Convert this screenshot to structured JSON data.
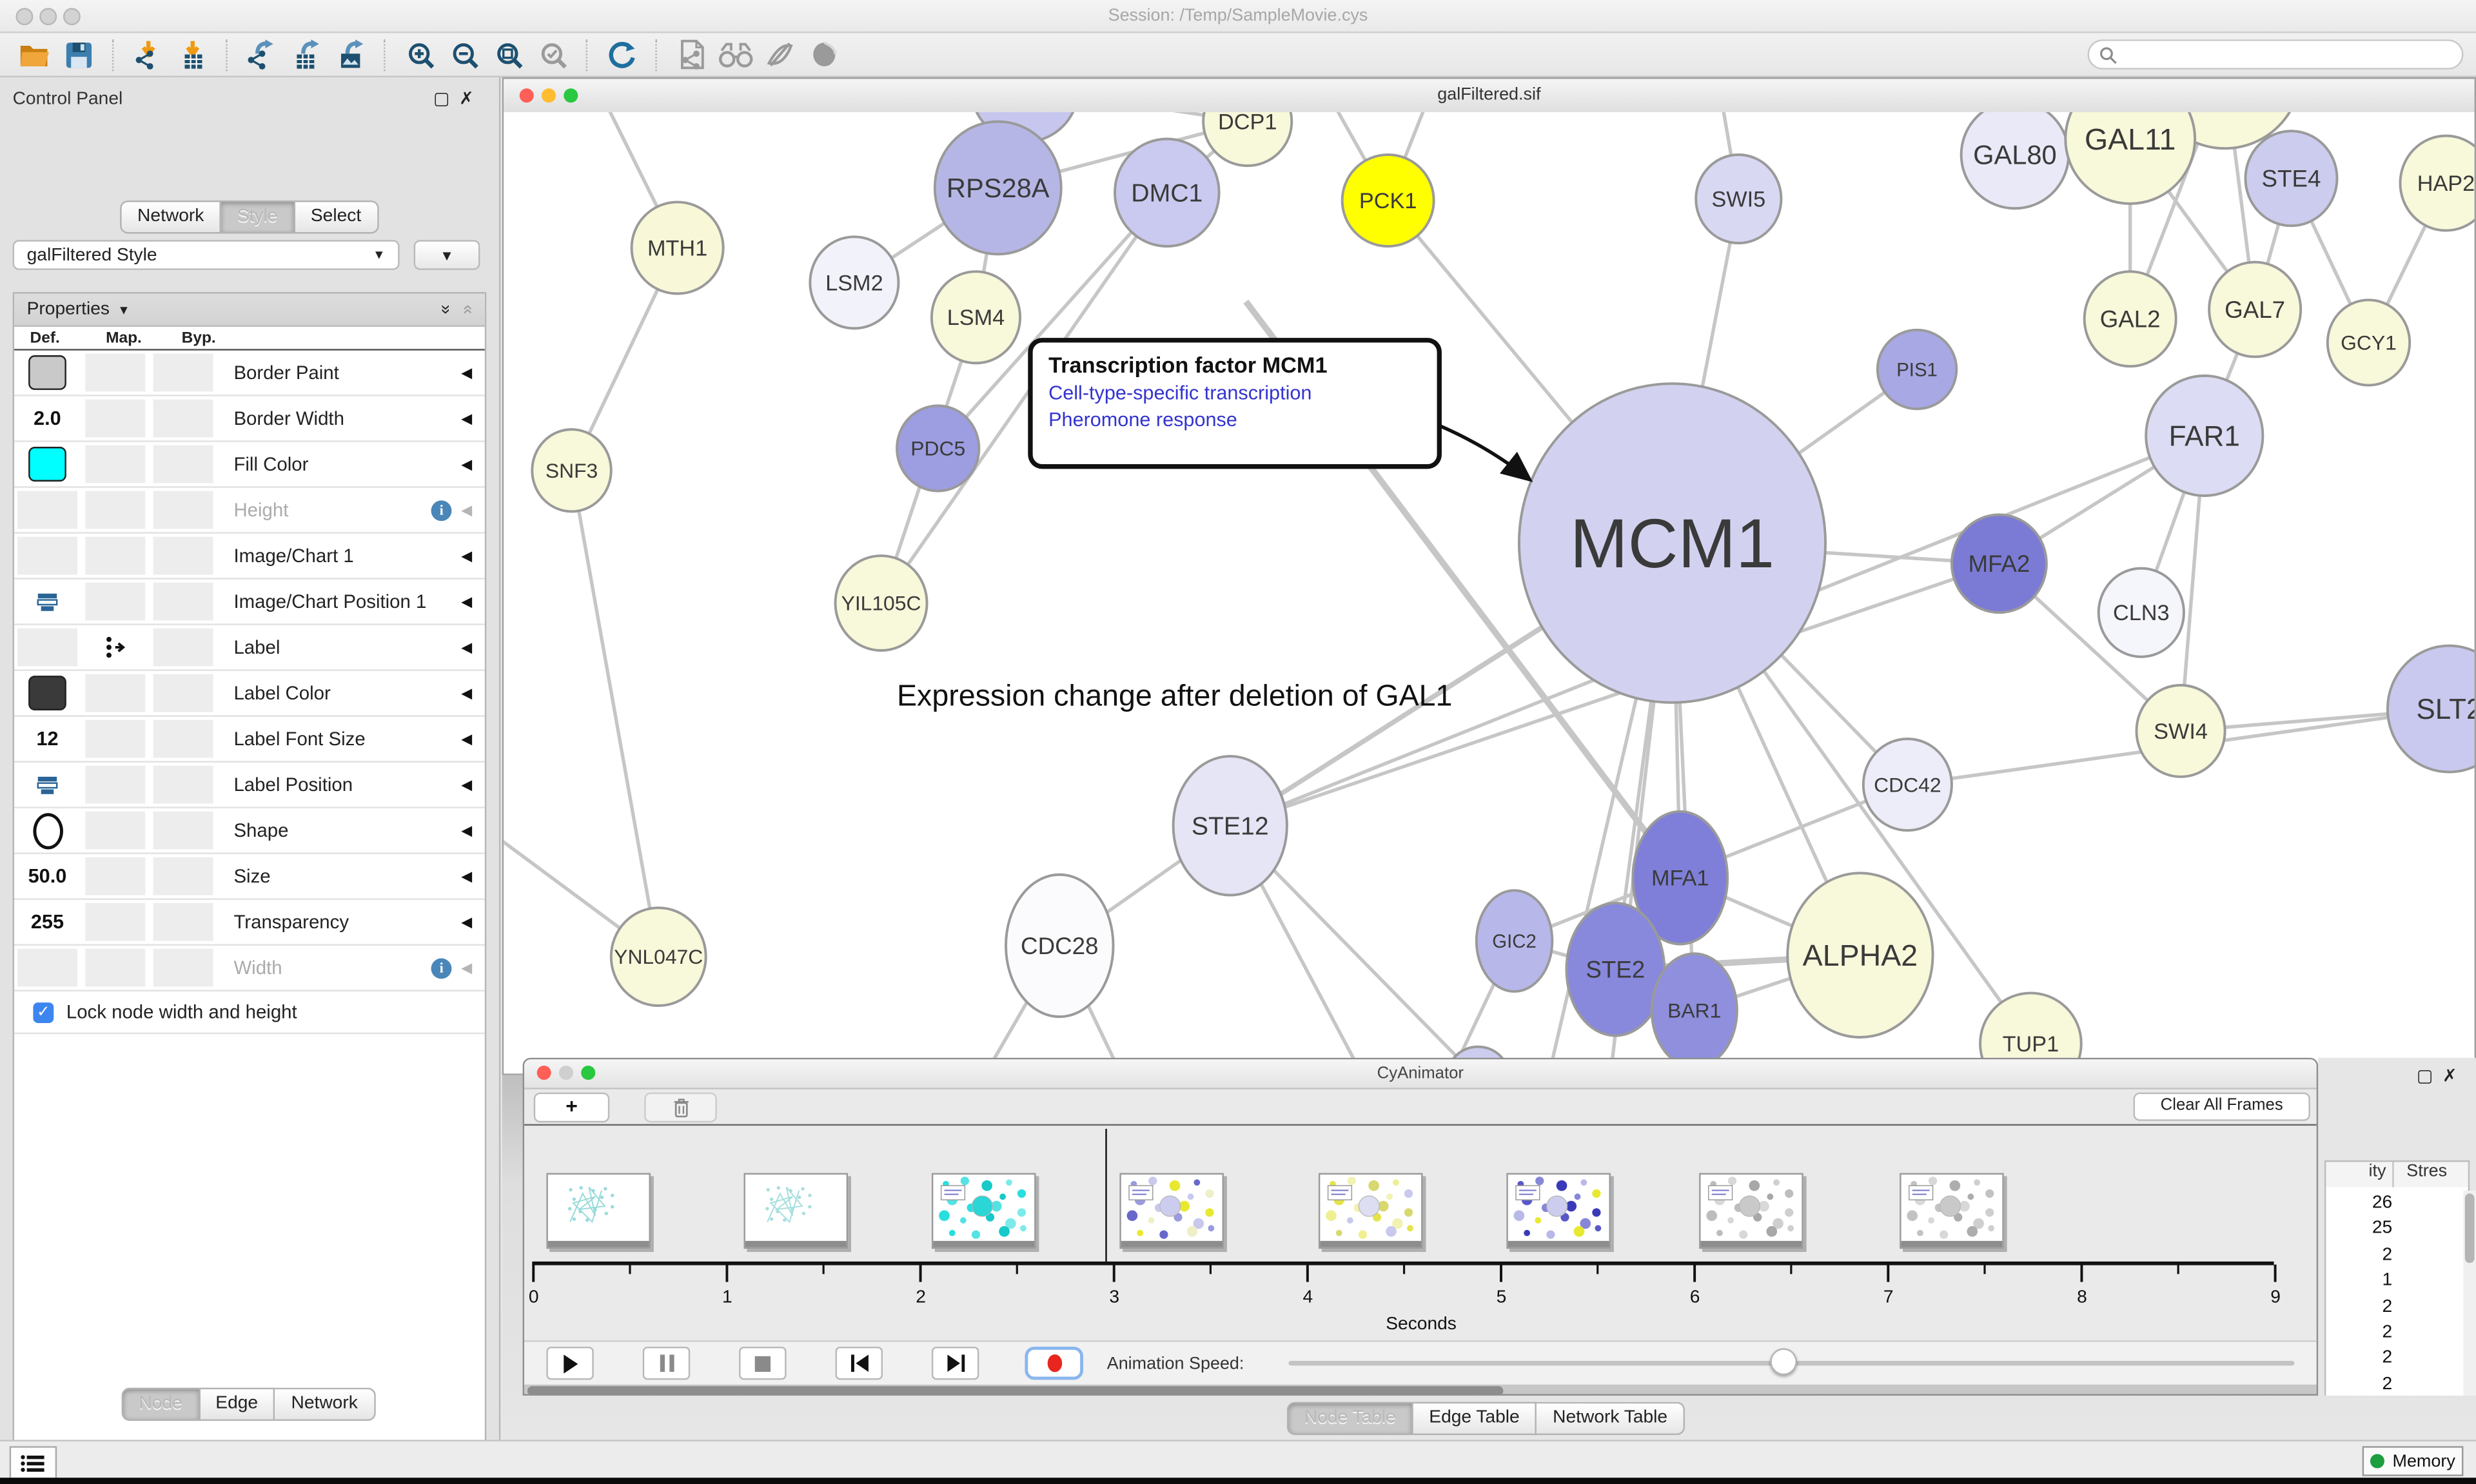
{
  "app": {
    "session_title": "Session: /Temp/SampleMovie.cys"
  },
  "colors": {
    "accent_blue": "#1d4f6f",
    "steel_blue": "#5b91ba",
    "orange": "#ef9a10",
    "gray_icon": "#9a9a9a",
    "edge": "#c6c6c6",
    "node_stroke": "#9a9a9a",
    "traffic_red": "#ff5f57",
    "traffic_yellow": "#febc2e",
    "traffic_green": "#28c840",
    "record_red": "#e8251f",
    "memory_green": "#1d9e3f"
  },
  "toolbar": {
    "items": [
      "open-session",
      "save-session",
      "|",
      "import-network",
      "import-table",
      "|",
      "export-network",
      "export-table",
      "export-image",
      "|",
      "zoom-in",
      "zoom-out",
      "zoom-fit",
      "zoom-selected",
      "|",
      "apply-layout",
      "|",
      "network-file",
      "first-neighbors",
      "hide-selected",
      "show-all"
    ],
    "search_placeholder": ""
  },
  "control_panel": {
    "title": "Control Panel",
    "tabs": [
      "Network",
      "Style",
      "Select"
    ],
    "active_tab": "Style",
    "style_name": "galFiltered Style",
    "properties_title": "Properties",
    "col_headers": [
      "Def.",
      "Map.",
      "Byp."
    ],
    "rows": [
      {
        "label": "Border Paint",
        "def": {
          "type": "swatch",
          "color": "#c9c9c9"
        }
      },
      {
        "label": "Border Width",
        "def": {
          "type": "text",
          "value": "2.0"
        }
      },
      {
        "label": "Fill Color",
        "def": {
          "type": "swatch",
          "color": "#00FFFF"
        }
      },
      {
        "label": "Height",
        "disabled": true,
        "info": true
      },
      {
        "label": "Image/Chart 1"
      },
      {
        "label": "Image/Chart Position 1",
        "def": {
          "type": "icon",
          "icon": "position"
        }
      },
      {
        "label": "Label",
        "map": {
          "type": "icon",
          "icon": "discrete-mapping"
        }
      },
      {
        "label": "Label Color",
        "def": {
          "type": "swatch",
          "color": "#3a3a3a"
        }
      },
      {
        "label": "Label Font Size",
        "def": {
          "type": "text",
          "value": "12"
        }
      },
      {
        "label": "Label Position",
        "def": {
          "type": "icon",
          "icon": "position"
        }
      },
      {
        "label": "Shape",
        "def": {
          "type": "icon",
          "icon": "ellipse"
        }
      },
      {
        "label": "Size",
        "def": {
          "type": "text",
          "value": "50.0"
        }
      },
      {
        "label": "Transparency",
        "def": {
          "type": "text",
          "value": "255"
        }
      },
      {
        "label": "Width",
        "disabled": true,
        "info": true
      }
    ],
    "lock_label": "Lock node width and height",
    "bottom_tabs": [
      "Node",
      "Edge",
      "Network"
    ],
    "bottom_active": "Node"
  },
  "network_window": {
    "title": "galFiltered.sif",
    "caption": "Expression change after deletion of GAL1",
    "annotation": {
      "title": "Transcription factor MCM1",
      "links": [
        "Cell-type-specific transcription",
        "Pheromone response"
      ]
    },
    "nodes": [
      [
        "cuttop",
        "",
        330,
        -15,
        34,
        34,
        "#c6c6ee",
        0
      ],
      [
        "bigyellow",
        "",
        1090,
        -25,
        48,
        48,
        "#f8f8da",
        0
      ],
      [
        "rps28a",
        "RPS28A",
        313,
        48,
        40,
        42,
        "#b6b6e6",
        17
      ],
      [
        "dmc1",
        "DMC1",
        420,
        51,
        33,
        34,
        "#cacaf0",
        16
      ],
      [
        "dcp1",
        "DCP1",
        471,
        6,
        28,
        28,
        "#f8f8da",
        14
      ],
      [
        "pck1",
        "PCK1",
        560,
        56,
        29,
        29,
        "#ffff00",
        14
      ],
      [
        "mth1",
        "MTH1",
        110,
        86,
        29,
        29,
        "#f8f8d8",
        14
      ],
      [
        "lsm2",
        "LSM2",
        222,
        108,
        28,
        29,
        "#f2f2fa",
        14
      ],
      [
        "lsm4",
        "LSM4",
        299,
        130,
        28,
        29,
        "#f8f8da",
        14
      ],
      [
        "snf3",
        "SNF3",
        43,
        227,
        25,
        26,
        "#f8f8da",
        13
      ],
      [
        "pdc5",
        "PDC5",
        275,
        213,
        26,
        27,
        "#9d9de2",
        13
      ],
      [
        "yil105c",
        "YIL105C",
        239,
        311,
        29,
        30,
        "#f8f8da",
        13
      ],
      [
        "swi5",
        "SWI5",
        782,
        55,
        27,
        28,
        "#d8d8f3",
        14
      ],
      [
        "gal80",
        "GAL80",
        957,
        27,
        34,
        34,
        "#e9e9f8",
        17
      ],
      [
        "gal11",
        "GAL11",
        1030,
        17,
        41,
        41,
        "#f8f8da",
        19
      ],
      [
        "ste4",
        "STE4",
        1132,
        42,
        29,
        30,
        "#ccccee",
        15
      ],
      [
        "hap2",
        "HAP2",
        1230,
        45,
        29,
        30,
        "#f8f8da",
        14
      ],
      [
        "gal2",
        "GAL2",
        1030,
        131,
        29,
        30,
        "#f8f8da",
        15
      ],
      [
        "gal7",
        "GAL7",
        1109,
        125,
        29,
        30,
        "#f8f8da",
        15
      ],
      [
        "gcy1",
        "GCY1",
        1181,
        146,
        26,
        27,
        "#f8f8da",
        13
      ],
      [
        "pis1",
        "PIS1",
        895,
        163,
        25,
        25,
        "#a8a8e4",
        12
      ],
      [
        "far1",
        "FAR1",
        1077,
        205,
        37,
        38,
        "#dcdcf4",
        18
      ],
      [
        "mfa2",
        "MFA2",
        947,
        286,
        30,
        31,
        "#7b7bd6",
        15
      ],
      [
        "cln3",
        "CLN3",
        1037,
        317,
        27,
        28,
        "#f5f5fc",
        14
      ],
      [
        "swi4",
        "SWI4",
        1062,
        392,
        28,
        29,
        "#f8f8da",
        14
      ],
      [
        "slt2",
        "SLT2",
        1232,
        378,
        39,
        40,
        "#c9c9ef",
        18
      ],
      [
        "cdc42",
        "CDC42",
        889,
        426,
        28,
        29,
        "#ededf9",
        13
      ],
      [
        "mcm1",
        "MCM1",
        740,
        273,
        97,
        101,
        "#d2d2f0",
        44
      ],
      [
        "ste12",
        "STE12",
        460,
        452,
        36,
        44,
        "#e5e5f6",
        16
      ],
      [
        "cdc28",
        "CDC28",
        352,
        528,
        34,
        45,
        "#fbfbfd",
        15
      ],
      [
        "ynl047c",
        "YNL047C",
        98,
        535,
        30,
        31,
        "#f8f8da",
        13
      ],
      [
        "gic2",
        "GIC2",
        640,
        525,
        24,
        32,
        "#b7b7ea",
        12
      ],
      [
        "mfa1",
        "MFA1",
        745,
        485,
        30,
        42,
        "#7f7fda",
        14
      ],
      [
        "ste2",
        "STE2",
        704,
        543,
        31,
        42,
        "#8888dc",
        15
      ],
      [
        "bar1",
        "BAR1",
        754,
        569,
        27,
        36,
        "#8f8fde",
        13
      ],
      [
        "alpha2",
        "ALPHA2",
        859,
        534,
        46,
        52,
        "#f8f8da",
        19
      ],
      [
        "tup1",
        "TUP1",
        967,
        590,
        32,
        32,
        "#f8f8da",
        14
      ],
      [
        "part1",
        "",
        617,
        612,
        20,
        20,
        "#ccccee",
        0
      ]
    ],
    "edges": [
      [
        "cuttop",
        "dcp1"
      ],
      [
        "rps28a",
        "dcp1"
      ],
      [
        "rps28a",
        "lsm2"
      ],
      [
        "rps28a",
        "lsm4"
      ],
      [
        "dmc1",
        "dcp1"
      ],
      [
        "dmc1",
        "pdc5"
      ],
      [
        "dmc1",
        "yil105c"
      ],
      [
        "lsm4",
        "yil105c"
      ],
      [
        "mth1",
        "snf3"
      ],
      {
        "p": [
          110,
          86,
          60,
          -15
        ]
      },
      [
        "snf3",
        "ynl047c"
      ],
      {
        "p": [
          98,
          535,
          -10,
          455
        ]
      },
      {
        "p": [
          560,
          56,
          520,
          -15
        ]
      },
      {
        "p": [
          560,
          56,
          588,
          -15
        ]
      },
      [
        "pck1",
        "mcm1"
      ],
      {
        "p": [
          782,
          55,
          770,
          -15
        ]
      },
      [
        "swi5",
        "mcm1"
      ],
      [
        "pis1",
        "mcm1"
      ],
      [
        "gal11",
        "gal2"
      ],
      [
        "gal11",
        "gal7"
      ],
      [
        "bigyellow",
        "gal2"
      ],
      [
        "bigyellow",
        "gal7"
      ],
      [
        "ste4",
        "gal7"
      ],
      [
        "ste4",
        "gcy1"
      ],
      [
        "hap2",
        "gcy1"
      ],
      [
        "gal7",
        "far1"
      ],
      [
        "far1",
        "ste12"
      ],
      [
        "far1",
        "mfa2"
      ],
      [
        "far1",
        "swi4"
      ],
      [
        "far1",
        "cln3"
      ],
      [
        "mfa2",
        "mcm1"
      ],
      [
        "mfa2",
        "ste12"
      ],
      [
        "mfa2",
        "swi4"
      ],
      [
        "mcm1",
        "ste12"
      ],
      {
        "p": [
          700,
          300,
          488,
          435
        ]
      },
      [
        "mcm1",
        "mfa1"
      ],
      [
        "mcm1",
        "ste2"
      ],
      [
        "mcm1",
        "bar1"
      ],
      [
        "mcm1",
        "tup1"
      ],
      [
        "mcm1",
        "alpha2"
      ],
      [
        "mcm1",
        "cdc42"
      ],
      {
        "p": [
          740,
          273,
          700,
          618
        ]
      },
      {
        "p": [
          740,
          273,
          660,
          618
        ]
      },
      [
        "ste12",
        "cdc28"
      ],
      [
        "ste12",
        "part1"
      ],
      {
        "p": [
          460,
          452,
          548,
          618
        ]
      },
      {
        "p": [
          352,
          528,
          300,
          618
        ]
      },
      {
        "p": [
          352,
          528,
          395,
          618
        ]
      },
      [
        "gic2",
        "cdc42"
      ],
      {
        "p": [
          640,
          525,
          596,
          618
        ]
      },
      [
        "ste2",
        "alpha2",
        4
      ],
      [
        "ste2",
        "bar1"
      ],
      [
        "ste2",
        "mfa1"
      ],
      [
        "ste2",
        "gic2"
      ],
      [
        "mfa1",
        "alpha2"
      ],
      [
        "bar1",
        "alpha2"
      ],
      [
        "swi4",
        "slt2"
      ],
      [
        "cdc42",
        "slt2"
      ],
      {
        "p": [
          470,
          120,
          745,
          485
        ],
        "w": 4
      }
    ]
  },
  "cyanimator": {
    "title": "CyAnimator",
    "add_label": "+",
    "clear_label": "Clear All Frames",
    "ticks": [
      "0",
      "1",
      "2",
      "3",
      "4",
      "5",
      "6",
      "7",
      "8",
      "9"
    ],
    "seconds_label": "Seconds",
    "speed_label": "Animation Speed:",
    "controls": [
      "play",
      "pause",
      "stop",
      "previous",
      "next",
      "record"
    ],
    "frames": [
      {
        "type": "sketch",
        "stroke": "#9adada",
        "box": false
      },
      {
        "type": "sketch",
        "stroke": "#a8dede",
        "box": false
      },
      {
        "type": "dots",
        "colors": [
          "#29dede",
          "#55e2e2",
          "#17c9c9",
          "#7deaea"
        ],
        "center": "#2ad6d6",
        "box": true
      },
      {
        "type": "dots",
        "colors": [
          "#9a9ade",
          "#c9c9ee",
          "#e8e830",
          "#6868cc",
          "#efefc8"
        ],
        "center": "#ccccee",
        "box": true
      },
      {
        "type": "dots",
        "colors": [
          "#e4e44a",
          "#f2f2b2",
          "#d8d870",
          "#efef90",
          "#c9c9ee"
        ],
        "center": "#dedef2",
        "box": true
      },
      {
        "type": "dots",
        "colors": [
          "#5858c8",
          "#8787d8",
          "#3a3ab8",
          "#b9b9e8",
          "#e8e830"
        ],
        "center": "#ccccee",
        "box": true
      },
      {
        "type": "dots",
        "colors": [
          "#bdbdbd",
          "#d8d8d8",
          "#a8a8a8",
          "#cfcfcf"
        ],
        "center": "#c9c9c9",
        "box": true
      },
      {
        "type": "dots",
        "colors": [
          "#c2c2c2",
          "#d8d8d8",
          "#adadad",
          "#cfcfcf"
        ],
        "center": "#c9c9c9",
        "box": true
      }
    ]
  },
  "tables_panel": {
    "headers": [
      "ity",
      "Stres"
    ],
    "values": [
      "26",
      "25",
      "2",
      "1",
      "2",
      "2",
      "2",
      "2"
    ]
  },
  "bottom": {
    "tabs": [
      "Node Table",
      "Edge Table",
      "Network Table"
    ],
    "active": "Node Table"
  },
  "status": {
    "memory_label": "Memory"
  }
}
